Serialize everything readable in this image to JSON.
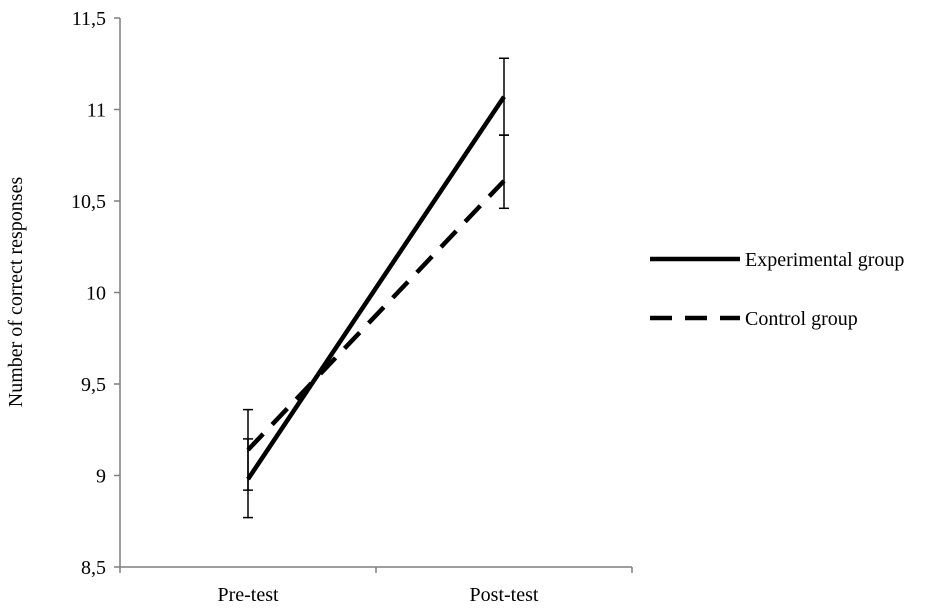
{
  "chart_data": {
    "type": "line",
    "categories": [
      "Pre-test",
      "Post-test"
    ],
    "title": "",
    "xlabel": "",
    "ylabel": "Number of correct responses",
    "ylim": [
      8.5,
      11.5
    ],
    "yticks": [
      8.5,
      9,
      9.5,
      10,
      10.5,
      11,
      11.5
    ],
    "ytick_labels": [
      "8,5",
      "9",
      "9,5",
      "10",
      "10,5",
      "11",
      "11,5"
    ],
    "grid": false,
    "legend_position": "right",
    "series": [
      {
        "name": "Experimental group",
        "style": "solid",
        "color": "#000000",
        "values": [
          8.98,
          11.07
        ],
        "error_low": [
          8.77,
          10.86
        ],
        "error_high": [
          9.2,
          11.28
        ]
      },
      {
        "name": "Control group",
        "style": "dashed",
        "color": "#000000",
        "values": [
          9.14,
          10.61
        ],
        "error_low": [
          8.92,
          10.46
        ],
        "error_high": [
          9.36,
          10.86
        ]
      }
    ]
  }
}
